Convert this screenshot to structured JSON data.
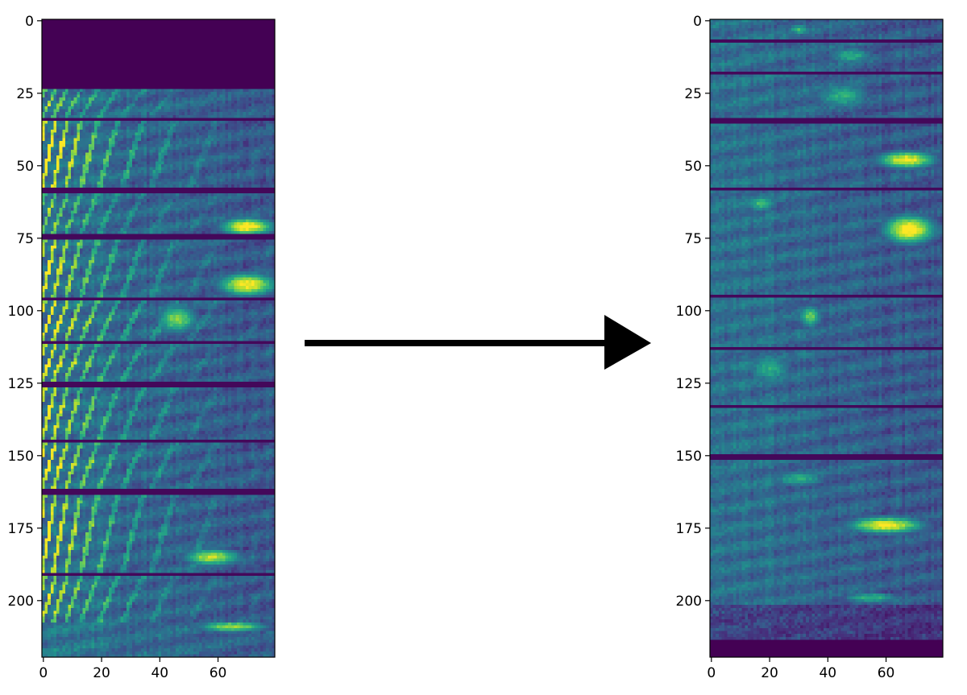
{
  "chart_data": [
    {
      "type": "heatmap",
      "title": "",
      "xlabel": "",
      "ylabel": "",
      "colormap": "viridis",
      "width": 80,
      "height": 220,
      "xlim": [
        0,
        79
      ],
      "ylim": [
        219,
        0
      ],
      "x_ticks": [
        "0",
        "20",
        "40",
        "60"
      ],
      "y_ticks": [
        "0",
        "25",
        "50",
        "75",
        "100",
        "125",
        "150",
        "175",
        "200"
      ],
      "padding_rows_top": 24,
      "row_bands": [
        {
          "start": 24,
          "end": 33,
          "onset_strength": 0.55,
          "harmonic": "periodic",
          "hotspots": []
        },
        {
          "start": 35,
          "end": 57,
          "onset_strength": 0.85,
          "harmonic": "periodic",
          "hotspots": []
        },
        {
          "start": 60,
          "end": 73,
          "onset_strength": 0.55,
          "harmonic": "periodic",
          "hotspots": [
            {
              "x": 70,
              "y": 71,
              "rx": 9,
              "ry": 3,
              "v": 1.0
            }
          ]
        },
        {
          "start": 76,
          "end": 95,
          "onset_strength": 0.75,
          "harmonic": "periodic",
          "hotspots": [
            {
              "x": 70,
              "y": 91,
              "rx": 10,
              "ry": 4,
              "v": 0.95
            }
          ]
        },
        {
          "start": 97,
          "end": 110,
          "onset_strength": 0.85,
          "harmonic": "periodic",
          "hotspots": [
            {
              "x": 46,
              "y": 103,
              "rx": 7,
              "ry": 5,
              "v": 0.75
            }
          ]
        },
        {
          "start": 112,
          "end": 124,
          "onset_strength": 0.75,
          "harmonic": "periodic",
          "hotspots": []
        },
        {
          "start": 127,
          "end": 144,
          "onset_strength": 0.75,
          "harmonic": "periodic",
          "hotspots": []
        },
        {
          "start": 146,
          "end": 161,
          "onset_strength": 0.8,
          "harmonic": "periodic",
          "hotspots": []
        },
        {
          "start": 164,
          "end": 190,
          "onset_strength": 0.8,
          "harmonic": "periodic",
          "hotspots": [
            {
              "x": 58,
              "y": 185,
              "rx": 10,
              "ry": 3,
              "v": 0.85
            }
          ]
        },
        {
          "start": 192,
          "end": 207,
          "onset_strength": 0.7,
          "harmonic": "periodic",
          "hotspots": []
        },
        {
          "start": 208,
          "end": 219,
          "onset_strength": 0.35,
          "harmonic": "noise",
          "hotspots": [
            {
              "x": 65,
              "y": 209,
              "rx": 12,
              "ry": 2,
              "v": 0.8
            }
          ]
        }
      ]
    },
    {
      "type": "heatmap",
      "title": "",
      "xlabel": "",
      "ylabel": "",
      "colormap": "viridis",
      "width": 80,
      "height": 220,
      "xlim": [
        0,
        79
      ],
      "ylim": [
        219,
        0
      ],
      "x_ticks": [
        "0",
        "20",
        "40",
        "60"
      ],
      "y_ticks": [
        "0",
        "25",
        "50",
        "75",
        "100",
        "125",
        "150",
        "175",
        "200"
      ],
      "padding_rows_bottom": 214,
      "row_bands": [
        {
          "start": 0,
          "end": 6,
          "hotspots": [
            {
              "x": 30,
              "y": 3,
              "rx": 4,
              "ry": 2,
              "v": 0.6
            }
          ]
        },
        {
          "start": 8,
          "end": 17,
          "hotspots": [
            {
              "x": 48,
              "y": 12,
              "rx": 8,
              "ry": 3,
              "v": 0.55
            }
          ]
        },
        {
          "start": 19,
          "end": 33,
          "hotspots": [
            {
              "x": 45,
              "y": 26,
              "rx": 10,
              "ry": 5,
              "v": 0.55
            }
          ]
        },
        {
          "start": 36,
          "end": 57,
          "hotspots": [
            {
              "x": 67,
              "y": 48,
              "rx": 10,
              "ry": 3,
              "v": 0.95
            }
          ]
        },
        {
          "start": 59,
          "end": 94,
          "hotspots": [
            {
              "x": 68,
              "y": 72,
              "rx": 9,
              "ry": 5,
              "v": 1.0
            },
            {
              "x": 17,
              "y": 63,
              "rx": 6,
              "ry": 3,
              "v": 0.6
            }
          ]
        },
        {
          "start": 96,
          "end": 112,
          "hotspots": [
            {
              "x": 34,
              "y": 102,
              "rx": 4,
              "ry": 4,
              "v": 0.7
            }
          ]
        },
        {
          "start": 114,
          "end": 132,
          "hotspots": [
            {
              "x": 20,
              "y": 120,
              "rx": 8,
              "ry": 5,
              "v": 0.55
            }
          ]
        },
        {
          "start": 134,
          "end": 149,
          "hotspots": []
        },
        {
          "start": 152,
          "end": 170,
          "hotspots": [
            {
              "x": 30,
              "y": 158,
              "rx": 10,
              "ry": 3,
              "v": 0.55
            }
          ]
        },
        {
          "start": 171,
          "end": 197,
          "hotspots": [
            {
              "x": 60,
              "y": 174,
              "rx": 13,
              "ry": 3,
              "v": 0.95
            }
          ]
        },
        {
          "start": 198,
          "end": 214,
          "hotspots": [
            {
              "x": 55,
              "y": 199,
              "rx": 10,
              "ry": 2,
              "v": 0.6
            }
          ]
        }
      ]
    }
  ]
}
